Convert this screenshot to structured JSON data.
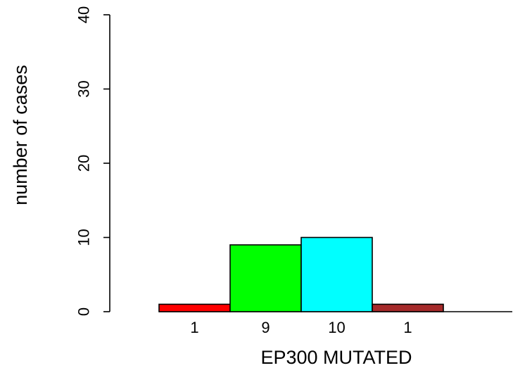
{
  "chart_data": {
    "type": "bar",
    "xlabel": "EP300 MUTATED",
    "ylabel": "number of cases",
    "ylim": [
      0,
      40
    ],
    "yticks": [
      "0",
      "10",
      "20",
      "30",
      "40"
    ],
    "categories": [
      "1",
      "9",
      "10",
      "1"
    ],
    "values": [
      1,
      9,
      10,
      1
    ],
    "colors": [
      "#ff0000",
      "#00ff00",
      "#00ffff",
      "#a52a2a"
    ],
    "grid": false,
    "legend": "none"
  }
}
